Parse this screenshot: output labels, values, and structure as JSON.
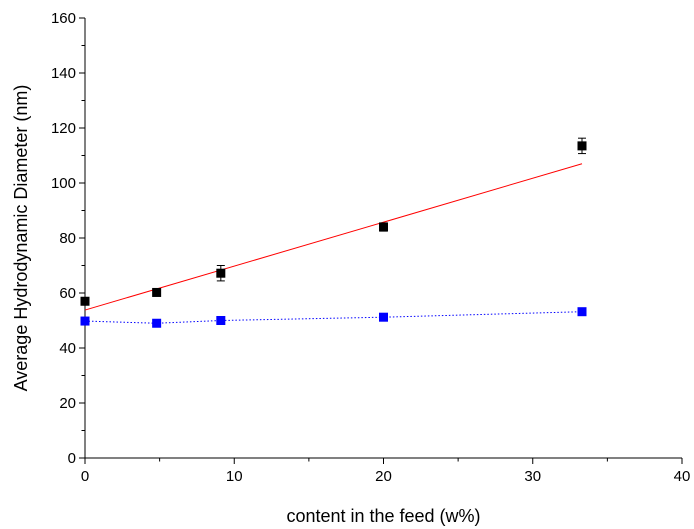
{
  "chart_data": {
    "type": "scatter",
    "title": "",
    "xlabel": "content in the feed (w%)",
    "ylabel": "Average Hydrodynamic Diameter (nm)",
    "xlim": [
      0,
      40
    ],
    "ylim": [
      0,
      160
    ],
    "xticks": [
      0,
      10,
      20,
      30,
      40
    ],
    "yticks": [
      0,
      20,
      40,
      60,
      80,
      100,
      120,
      140,
      160
    ],
    "xtick_labels": [
      "0",
      "10",
      "20",
      "30",
      "40"
    ],
    "ytick_labels": [
      "0",
      "20",
      "40",
      "60",
      "80",
      "100",
      "120",
      "140",
      "160"
    ],
    "grid": false,
    "legend": "none",
    "series": [
      {
        "color": "#000000",
        "marker": "square",
        "x": [
          0,
          4.8,
          9.1,
          20,
          33.3
        ],
        "y": [
          57,
          60.2,
          67.2,
          84,
          113.5
        ],
        "err": [
          1.2,
          1.0,
          2.8,
          1.5,
          2.8
        ]
      },
      {
        "color": "#0000ff",
        "marker": "square",
        "line": "dotted",
        "x": [
          0,
          4.8,
          9.1,
          20,
          33.3
        ],
        "y": [
          49.8,
          49,
          50,
          51.2,
          53.2
        ]
      }
    ],
    "fit_line": {
      "color": "#ff0000",
      "x": [
        0,
        33.3
      ],
      "y": [
        53.8,
        107
      ]
    }
  }
}
